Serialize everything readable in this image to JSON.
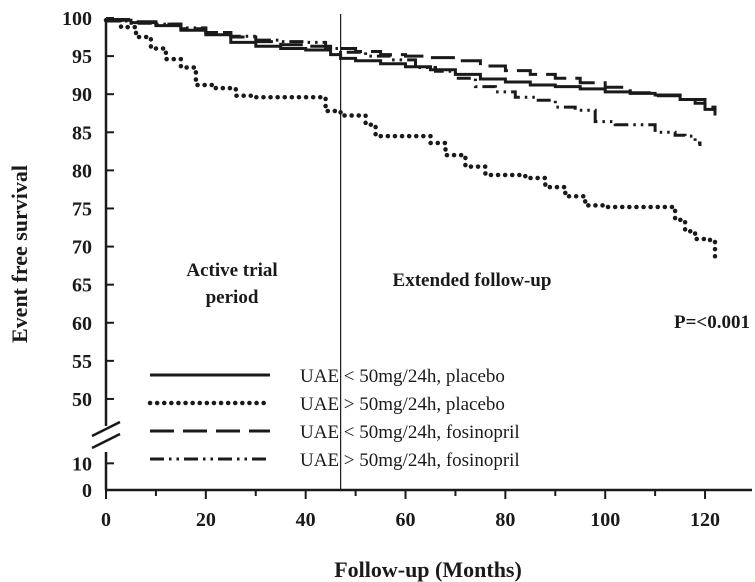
{
  "chart_data": {
    "type": "line",
    "xlabel": "Follow-up (Months)",
    "ylabel": "Event free survival",
    "xlim": [
      0,
      125
    ],
    "x_ticks": [
      0,
      20,
      40,
      60,
      80,
      100,
      120
    ],
    "y_ticks_upper": [
      50,
      55,
      60,
      65,
      70,
      75,
      80,
      85,
      90,
      95,
      100
    ],
    "y_ticks_lower": [
      0,
      10
    ],
    "ylim_upper": [
      47.5,
      100
    ],
    "ylim_lower": [
      0,
      12
    ],
    "axis_break": true,
    "grid": false,
    "legend_position": "bottom-left",
    "vertical_marker_x": 47,
    "annotations": [
      {
        "lines": [
          "Active trial",
          "period"
        ]
      },
      {
        "lines": [
          "Extended follow-up"
        ]
      },
      {
        "lines": [
          "P=<0.001"
        ]
      }
    ],
    "series": [
      {
        "name": "UAE < 50mg/24h, placebo",
        "style": "solid",
        "points": [
          [
            0,
            99.7
          ],
          [
            5,
            99.4
          ],
          [
            10,
            99.0
          ],
          [
            15,
            98.4
          ],
          [
            20,
            97.8
          ],
          [
            25,
            96.8
          ],
          [
            30,
            96.3
          ],
          [
            35,
            96.0
          ],
          [
            40,
            95.8
          ],
          [
            45,
            95.2
          ],
          [
            47,
            94.7
          ],
          [
            50,
            94.4
          ],
          [
            55,
            94.0
          ],
          [
            60,
            93.6
          ],
          [
            65,
            93.2
          ],
          [
            70,
            92.6
          ],
          [
            75,
            92.0
          ],
          [
            80,
            91.6
          ],
          [
            85,
            91.2
          ],
          [
            90,
            91.0
          ],
          [
            95,
            90.7
          ],
          [
            100,
            90.3
          ],
          [
            105,
            90.1
          ],
          [
            110,
            89.9
          ],
          [
            115,
            89.3
          ],
          [
            118,
            88.8
          ],
          [
            120,
            88.0
          ],
          [
            122,
            87.2
          ]
        ]
      },
      {
        "name": "UAE > 50mg/24h, placebo",
        "style": "dotted",
        "points": [
          [
            0,
            99.7
          ],
          [
            3,
            98.8
          ],
          [
            6,
            97.5
          ],
          [
            9,
            96.0
          ],
          [
            12,
            94.6
          ],
          [
            15,
            93.5
          ],
          [
            18,
            91.2
          ],
          [
            22,
            90.8
          ],
          [
            26,
            89.8
          ],
          [
            30,
            89.6
          ],
          [
            40,
            89.6
          ],
          [
            44,
            87.8
          ],
          [
            47,
            87.2
          ],
          [
            52,
            86.0
          ],
          [
            54,
            84.5
          ],
          [
            60,
            84.5
          ],
          [
            65,
            83.6
          ],
          [
            68,
            82.0
          ],
          [
            72,
            80.5
          ],
          [
            76,
            79.4
          ],
          [
            84,
            79.0
          ],
          [
            88,
            77.8
          ],
          [
            92,
            76.6
          ],
          [
            96,
            75.4
          ],
          [
            100,
            75.2
          ],
          [
            112,
            75.2
          ],
          [
            114,
            73.5
          ],
          [
            116,
            72.0
          ],
          [
            118,
            71.0
          ],
          [
            121,
            70.7
          ],
          [
            122,
            68.2
          ]
        ]
      },
      {
        "name": "UAE < 50mg/24h, fosinopril",
        "style": "dashed",
        "points": [
          [
            0,
            99.8
          ],
          [
            5,
            99.5
          ],
          [
            10,
            99.2
          ],
          [
            15,
            98.6
          ],
          [
            20,
            98.1
          ],
          [
            25,
            97.5
          ],
          [
            30,
            96.9
          ],
          [
            35,
            96.5
          ],
          [
            40,
            96.3
          ],
          [
            45,
            96.0
          ],
          [
            50,
            95.6
          ],
          [
            55,
            95.2
          ],
          [
            60,
            95.0
          ],
          [
            65,
            94.8
          ],
          [
            70,
            94.4
          ],
          [
            75,
            93.7
          ],
          [
            80,
            93.1
          ],
          [
            85,
            92.6
          ],
          [
            90,
            92.1
          ],
          [
            95,
            91.5
          ],
          [
            100,
            90.9
          ],
          [
            105,
            90.2
          ],
          [
            110,
            89.8
          ],
          [
            115,
            89.3
          ],
          [
            120,
            88.3
          ],
          [
            122,
            87.6
          ]
        ]
      },
      {
        "name": "UAE > 50mg/24h, fosinopril",
        "style": "dash-dot-dot",
        "points": [
          [
            0,
            99.6
          ],
          [
            5,
            99.3
          ],
          [
            10,
            99.2
          ],
          [
            15,
            98.7
          ],
          [
            20,
            98.1
          ],
          [
            25,
            97.6
          ],
          [
            30,
            97.1
          ],
          [
            35,
            96.9
          ],
          [
            40,
            96.8
          ],
          [
            44,
            96.0
          ],
          [
            47,
            95.5
          ],
          [
            52,
            95.0
          ],
          [
            57,
            94.5
          ],
          [
            62,
            93.5
          ],
          [
            66,
            93.0
          ],
          [
            70,
            92.1
          ],
          [
            74,
            91.0
          ],
          [
            78,
            90.3
          ],
          [
            82,
            89.6
          ],
          [
            86,
            89.2
          ],
          [
            90,
            88.3
          ],
          [
            94,
            87.9
          ],
          [
            98,
            86.4
          ],
          [
            102,
            86.0
          ],
          [
            106,
            86.0
          ],
          [
            110,
            85.0
          ],
          [
            114,
            84.6
          ],
          [
            116,
            84.5
          ],
          [
            118,
            83.6
          ],
          [
            119,
            83.2
          ]
        ]
      }
    ]
  }
}
